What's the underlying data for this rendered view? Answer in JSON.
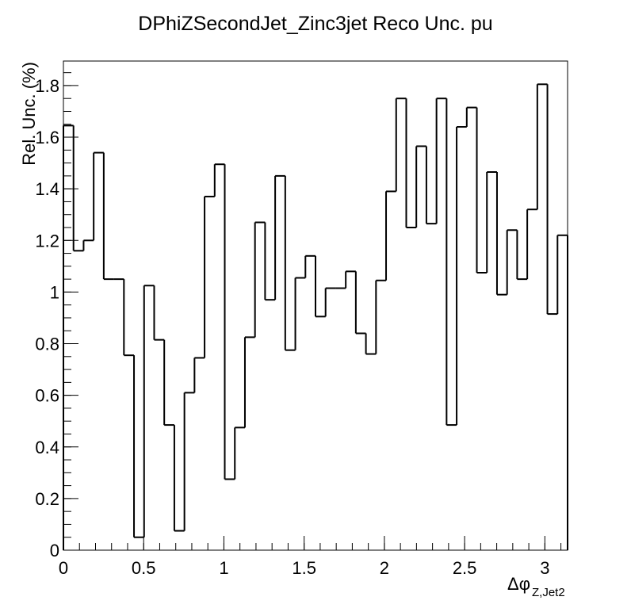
{
  "chart_data": {
    "type": "histogram",
    "title": "DPhiZSecondJet_Zinc3jet Reco Unc. pu",
    "y_label": "Rel. Unc. (%)",
    "x_label": "Δφ",
    "x_label_sub": "Z,Jet2",
    "color": "#000000",
    "bins": [
      0,
      0.0628,
      0.1257,
      0.1885,
      0.2513,
      0.3142,
      0.377,
      0.4398,
      0.5027,
      0.5655,
      0.6283,
      0.6912,
      0.754,
      0.8168,
      0.8796,
      0.9425,
      1.0053,
      1.0681,
      1.131,
      1.1938,
      1.2566,
      1.3195,
      1.3823,
      1.4451,
      1.508,
      1.5708,
      1.6336,
      1.6965,
      1.7593,
      1.8221,
      1.885,
      1.9478,
      2.0106,
      2.0735,
      2.1363,
      2.1991,
      2.2619,
      2.3248,
      2.3876,
      2.4504,
      2.5133,
      2.5761,
      2.6389,
      2.7018,
      2.7646,
      2.8274,
      2.8903,
      2.9531,
      3.0159,
      3.0788,
      3.1416
    ],
    "values": [
      1.645,
      1.16,
      1.2,
      1.54,
      1.05,
      1.05,
      0.755,
      0.05,
      1.025,
      0.815,
      0.485,
      0.075,
      0.61,
      0.745,
      1.37,
      1.495,
      0.275,
      0.475,
      0.825,
      1.27,
      0.97,
      1.45,
      0.775,
      1.055,
      1.14,
      0.905,
      1.015,
      1.015,
      1.08,
      0.84,
      0.76,
      1.045,
      1.39,
      1.75,
      1.25,
      1.565,
      1.265,
      1.75,
      0.485,
      1.64,
      1.715,
      1.075,
      1.465,
      0.99,
      1.24,
      1.05,
      1.32,
      1.805,
      0.915,
      1.22
    ],
    "xlim": [
      0,
      3.1416
    ],
    "ylim": [
      0,
      1.895
    ],
    "xticks": [
      0,
      0.5,
      1,
      1.5,
      2,
      2.5,
      3
    ],
    "yticks": [
      0,
      0.2,
      0.4,
      0.6,
      0.8,
      1,
      1.2,
      1.4,
      1.6,
      1.8
    ]
  }
}
